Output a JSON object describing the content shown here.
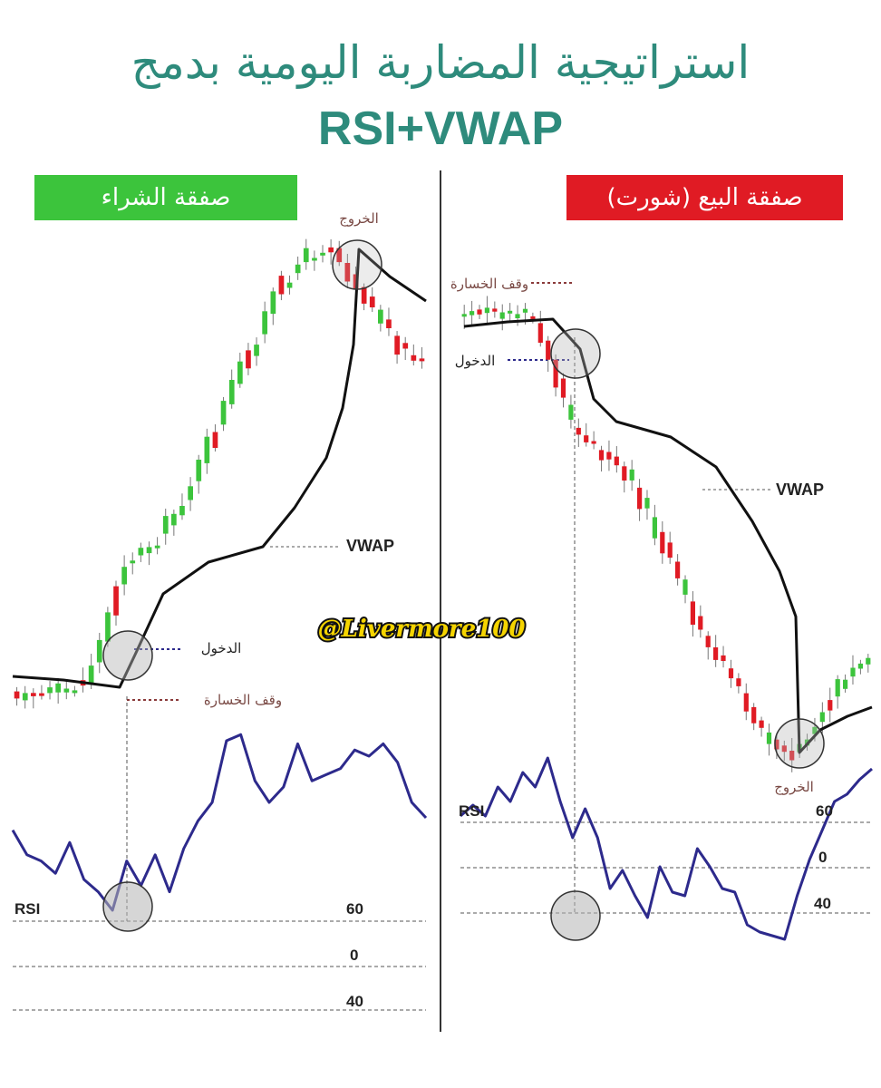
{
  "title": {
    "arabic": "استراتيجية المضاربة اليومية بدمج",
    "english": "RSI+VWAP"
  },
  "watermark": "@Livermore100",
  "colors": {
    "title": "#2e8b7c",
    "buy_badge": "#3cc43c",
    "sell_badge": "#e01b24",
    "bull": "#3cc43c",
    "bear": "#e01b24",
    "rsi_line": "#2d2a8c",
    "vwap_line": "#111111"
  },
  "chart_data": [
    {
      "type": "line",
      "panel": "buy",
      "badge": "صفقة الشراء",
      "vwap_label": "VWAP",
      "annotations": {
        "entry": "الدخول",
        "stop_loss": "وقف الخسارة",
        "exit": "الخروج"
      },
      "rsi": {
        "label": "RSI",
        "levels": [
          "60",
          "0",
          "40"
        ],
        "values": [
          66,
          58,
          56,
          52,
          62,
          50,
          46,
          40,
          56,
          48,
          58,
          46,
          60,
          69,
          75,
          95,
          97,
          82,
          75,
          80,
          94,
          82,
          84,
          86,
          92,
          90,
          94,
          88,
          75,
          70
        ]
      }
    },
    {
      "type": "line",
      "panel": "sell",
      "badge": "صفقة البيع (شورت)",
      "vwap_label": "VWAP",
      "annotations": {
        "entry": "الدخول",
        "stop_loss": "وقف الخسارة",
        "exit": "الخروج"
      },
      "rsi": {
        "label": "RSI",
        "levels": [
          "60",
          "0",
          "40"
        ],
        "values": [
          70,
          73,
          70,
          78,
          74,
          82,
          78,
          86,
          74,
          64,
          72,
          64,
          50,
          55,
          48,
          42,
          56,
          49,
          48,
          61,
          56,
          50,
          49,
          40,
          38,
          37,
          36,
          48,
          58,
          66,
          74,
          76,
          80,
          83
        ]
      }
    }
  ]
}
